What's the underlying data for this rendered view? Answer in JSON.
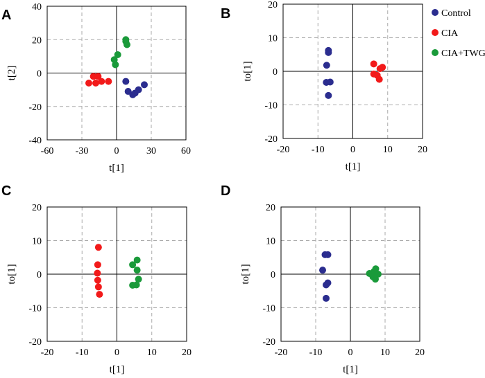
{
  "colors": {
    "control": "#2b2d8f",
    "cia": "#f21a1a",
    "cia_twg": "#1a9a3a",
    "grid": "#aaaaaa",
    "axis": "#000000"
  },
  "legend": {
    "position": "top-right",
    "items": [
      {
        "label": "Control",
        "series": "control"
      },
      {
        "label": "CIA",
        "series": "cia"
      },
      {
        "label": "CIA+TWG",
        "series": "cia_twg"
      }
    ]
  },
  "chart_data": [
    {
      "panel": "A",
      "type": "scatter",
      "xlabel": "t[1]",
      "ylabel": "t[2]",
      "xlim": [
        -60,
        60
      ],
      "ylim": [
        -40,
        40
      ],
      "xticks": [
        "-60",
        "-30",
        "0",
        "30",
        "60"
      ],
      "yticks": [
        "40",
        "20",
        "0",
        "-20",
        "-40"
      ],
      "xtick_values": [
        -60,
        -30,
        0,
        30,
        60
      ],
      "ytick_values": [
        40,
        20,
        0,
        -20,
        -40
      ],
      "grid": true,
      "series": [
        {
          "name": "Control",
          "color_key": "control",
          "points": [
            [
              8,
              -5
            ],
            [
              24,
              -7
            ],
            [
              19,
              -10
            ],
            [
              10,
              -11
            ],
            [
              16,
              -12
            ],
            [
              14,
              -13
            ]
          ]
        },
        {
          "name": "CIA",
          "color_key": "cia",
          "points": [
            [
              -20,
              -2
            ],
            [
              -16,
              -2
            ],
            [
              -7,
              -5
            ],
            [
              -13,
              -5
            ],
            [
              -24,
              -6
            ],
            [
              -18,
              -6
            ]
          ]
        },
        {
          "name": "CIA+TWG",
          "color_key": "cia_twg",
          "points": [
            [
              8,
              19
            ],
            [
              9,
              17
            ],
            [
              1,
              11
            ],
            [
              -2,
              8
            ],
            [
              -1,
              5
            ],
            [
              8,
              20
            ]
          ]
        }
      ]
    },
    {
      "panel": "B",
      "type": "scatter",
      "xlabel": "t[1]",
      "ylabel": "to[1]",
      "xlim": [
        -20,
        20
      ],
      "ylim": [
        -20,
        20
      ],
      "xticks": [
        "-20",
        "-10",
        "0",
        "10",
        "20"
      ],
      "yticks": [
        "20",
        "10",
        "0",
        "-10",
        "-20"
      ],
      "xtick_values": [
        -20,
        -10,
        0,
        10,
        20
      ],
      "ytick_values": [
        20,
        10,
        0,
        -10,
        -20
      ],
      "grid": true,
      "series": [
        {
          "name": "Control",
          "color_key": "control",
          "points": [
            [
              -7,
              6.2
            ],
            [
              -7,
              5.6
            ],
            [
              -7.5,
              1.8
            ],
            [
              -7.6,
              -3.3
            ],
            [
              -6.5,
              -3.2
            ],
            [
              -7,
              -7.2
            ]
          ]
        },
        {
          "name": "CIA",
          "color_key": "cia",
          "points": [
            [
              6,
              2.2
            ],
            [
              8.5,
              1.2
            ],
            [
              7.8,
              0.8
            ],
            [
              6,
              -0.8
            ],
            [
              7,
              -1.2
            ],
            [
              7.6,
              -2.4
            ]
          ]
        }
      ]
    },
    {
      "panel": "C",
      "type": "scatter",
      "xlabel": "t[1]",
      "ylabel": "to[1]",
      "xlim": [
        -20,
        20
      ],
      "ylim": [
        -20,
        20
      ],
      "xticks": [
        "-20",
        "-10",
        "0",
        "10",
        "20"
      ],
      "yticks": [
        "20",
        "10",
        "0",
        "-10",
        "-20"
      ],
      "xtick_values": [
        -20,
        -10,
        0,
        10,
        20
      ],
      "ytick_values": [
        20,
        10,
        0,
        -10,
        -20
      ],
      "grid": true,
      "series": [
        {
          "name": "CIA",
          "color_key": "cia",
          "points": [
            [
              -5.3,
              8
            ],
            [
              -5.5,
              2.8
            ],
            [
              -5.6,
              0.3
            ],
            [
              -5.5,
              -1.8
            ],
            [
              -5.3,
              -3.8
            ],
            [
              -5,
              -6
            ]
          ]
        },
        {
          "name": "CIA+TWG",
          "color_key": "cia_twg",
          "points": [
            [
              5.8,
              4.2
            ],
            [
              4.5,
              2.8
            ],
            [
              5.8,
              1.2
            ],
            [
              6.2,
              -1.5
            ],
            [
              4.5,
              -3.3
            ],
            [
              5.6,
              -3.2
            ]
          ]
        }
      ]
    },
    {
      "panel": "D",
      "type": "scatter",
      "xlabel": "t[1]",
      "ylabel": "to[1]",
      "xlim": [
        -20,
        20
      ],
      "ylim": [
        -20,
        20
      ],
      "xticks": [
        "-20",
        "-10",
        "0",
        "10",
        "20"
      ],
      "yticks": [
        "20",
        "10",
        "0",
        "-10",
        "-20"
      ],
      "xtick_values": [
        -20,
        -10,
        0,
        10,
        20
      ],
      "ytick_values": [
        20,
        10,
        0,
        -10,
        -20
      ],
      "grid": true,
      "series": [
        {
          "name": "Control",
          "color_key": "control",
          "points": [
            [
              -7.3,
              5.8
            ],
            [
              -6.5,
              5.8
            ],
            [
              -8,
              1.2
            ],
            [
              -6.5,
              -2.6
            ],
            [
              -7,
              -3.2
            ],
            [
              -7,
              -7.2
            ]
          ]
        },
        {
          "name": "CIA+TWG",
          "color_key": "cia_twg",
          "points": [
            [
              5.5,
              0.2
            ],
            [
              6.8,
              0.8
            ],
            [
              7.3,
              1.6
            ],
            [
              8,
              0
            ],
            [
              6.5,
              -0.8
            ],
            [
              7.2,
              -1.5
            ]
          ]
        }
      ]
    }
  ]
}
